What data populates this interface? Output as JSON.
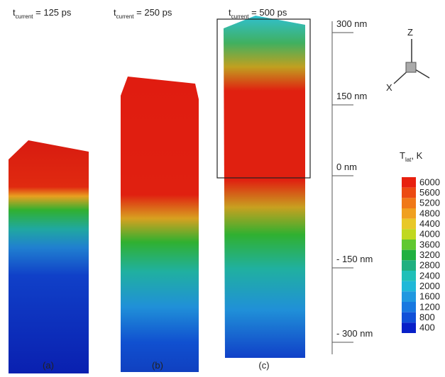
{
  "panels": [
    {
      "time_symbol": "t",
      "time_subscript": "current",
      "time_text": " = 125 ps",
      "label": "(a)"
    },
    {
      "time_symbol": "t",
      "time_subscript": "current",
      "time_text": " = 250 ps",
      "label": "(b)"
    },
    {
      "time_symbol": "t",
      "time_subscript": "current",
      "time_text": " = 500 ps",
      "label": "(c)"
    }
  ],
  "scale": {
    "labels": [
      "300 nm",
      "150 nm",
      "0 nm",
      "- 150 nm",
      "- 300 nm"
    ]
  },
  "axes": {
    "z": "Z",
    "x": "X"
  },
  "colorbar": {
    "title_symbol": "T",
    "title_subscript": "lat",
    "title_text": ", K",
    "levels": [
      6000,
      5600,
      5200,
      4800,
      4400,
      4000,
      3600,
      3200,
      2800,
      2400,
      2000,
      1600,
      1200,
      800,
      400
    ]
  }
}
